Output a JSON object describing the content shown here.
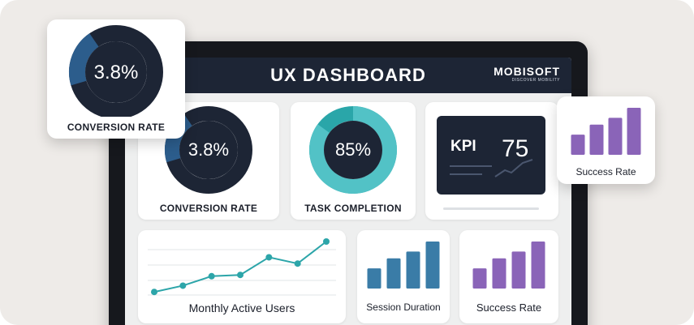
{
  "header": {
    "title": "UX DASHBOARD",
    "brand_name": "MOBISOFT",
    "brand_tagline": "DISCOVER MOBILITY"
  },
  "conversion_card": {
    "value": "3.8%",
    "label": "CONVERSION RATE",
    "fraction": 0.2
  },
  "task_card": {
    "value": "85%",
    "label": "TASK COMPLETION",
    "fraction": 0.85
  },
  "kpi_card": {
    "label": "KPI",
    "value": "75"
  },
  "mau_card": {
    "title": "Monthly Active Users",
    "points": [
      1,
      2,
      3.5,
      3.7,
      6.5,
      5.5,
      9
    ]
  },
  "session_card": {
    "title": "Session Duration",
    "bars": [
      3,
      4.5,
      5.5,
      7
    ]
  },
  "success_card": {
    "title": "Success Rate",
    "bars": [
      3,
      4.5,
      5.5,
      7
    ]
  },
  "float_conversion": {
    "value": "3.8%",
    "label": "CONVERSION RATE",
    "fraction": 0.2
  },
  "float_success": {
    "title": "Success Rate",
    "bars": [
      3,
      4.5,
      5.5,
      7
    ]
  },
  "colors": {
    "navy": "#1d2535",
    "donut_blue": "#2c5d8c",
    "teal": "#2aa6a9",
    "teal_light": "#52c2c6",
    "bar_blue": "#3a7ca7",
    "bar_purple": "#8a64b8",
    "line_teal": "#2ca5a9"
  }
}
